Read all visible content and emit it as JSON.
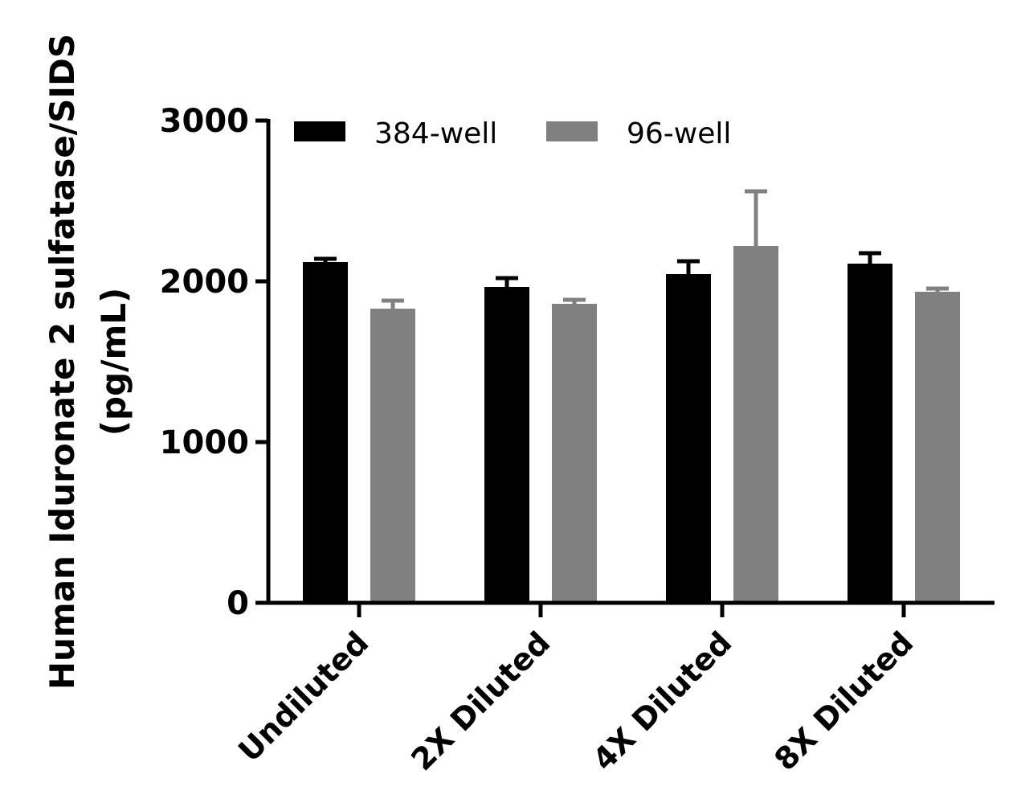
{
  "chart_data": {
    "type": "bar",
    "title": "",
    "xlabel": "",
    "ylabel_lines": [
      "Human Iduronate 2 sulfatase/SIDS",
      "(pg/mL)"
    ],
    "categories": [
      "Undiluted",
      "2X Diluted",
      "4X Diluted",
      "8X Diluted"
    ],
    "yticks": [
      "0",
      "1000",
      "2000",
      "3000"
    ],
    "ylim": [
      0,
      3000
    ],
    "legend_position": "top",
    "series": [
      {
        "name": "384-well",
        "color": "#000000",
        "values": [
          2120,
          1965,
          2045,
          2110
        ],
        "errors": [
          20,
          55,
          80,
          65
        ]
      },
      {
        "name": "96-well",
        "color": "#808080",
        "values": [
          1830,
          1860,
          2220,
          1935
        ],
        "errors": [
          50,
          25,
          340,
          20
        ]
      }
    ]
  }
}
